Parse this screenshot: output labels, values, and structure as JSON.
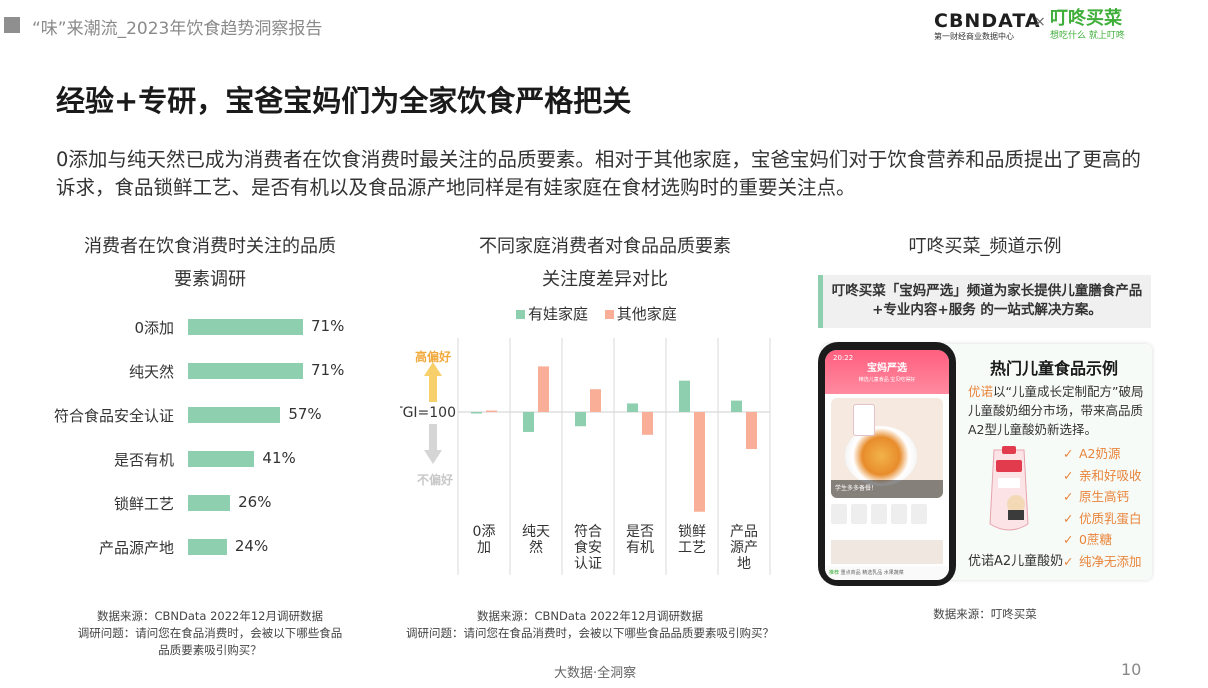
{
  "header": {
    "report_title": "“味”来潮流_2023年饮食趋势洞察报告",
    "logo_cbn_main": "CBNDATA",
    "logo_cbn_sub": "第一财经商业数据中心",
    "logo_times": "×",
    "logo_dd_main": "叮咚买菜",
    "logo_dd_sub": "想吃什么 就上叮咚"
  },
  "page_title": "经验+专研，宝爸宝妈们为全家饮食严格把关",
  "description": "0添加与纯天然已成为消费者在饮食消费时最关注的品质要素。相对于其他家庭，宝爸宝妈们对于饮食营养和品质提出了更高的诉求，食品锁鲜工艺、是否有机以及食品源产地同样是有娃家庭在食材选购时的重要关注点。",
  "colors": {
    "green": "#8ecfb0",
    "orange": "#f9ae97",
    "accent": "#e8843a"
  },
  "chart_data": [
    {
      "type": "bar",
      "orientation": "horizontal",
      "title_line1": "消费者在饮食消费时关注的品质",
      "title_line2": "要素调研",
      "categories": [
        "0添加",
        "纯天然",
        "符合食品安全认证",
        "是否有机",
        "锁鲜工艺",
        "产品源产地"
      ],
      "values": [
        71,
        71,
        57,
        41,
        26,
        24
      ],
      "value_labels": [
        "71%",
        "71%",
        "57%",
        "41%",
        "26%",
        "24%"
      ],
      "xlim": [
        0,
        100
      ],
      "color": "#8ecfb0",
      "grid": false
    },
    {
      "type": "bar",
      "title_line1": "不同家庭消费者对食品品质要素",
      "title_line2": "关注度差异对比",
      "baseline_label": "TGI=100",
      "baseline": 100,
      "top_label": "高偏好",
      "bottom_label": "不偏好",
      "categories": [
        "0添加",
        "纯天然",
        "符合食安认证",
        "是否有机",
        "锁鲜工艺",
        "产品源产地"
      ],
      "category_lines": [
        [
          "0添",
          "加"
        ],
        [
          "纯天",
          "然"
        ],
        [
          "符合",
          "食安",
          "认证"
        ],
        [
          "是否",
          "有机"
        ],
        [
          "锁鲜",
          "工艺"
        ],
        [
          "产品",
          "源产",
          "地"
        ]
      ],
      "series": [
        {
          "name": "有娃家庭",
          "color": "#8ecfb0",
          "values": [
            100,
            93,
            95,
            103,
            111,
            104
          ]
        },
        {
          "name": "其他家庭",
          "color": "#f9ae97",
          "values": [
            100.5,
            116,
            108,
            92,
            65,
            87
          ]
        }
      ],
      "ylim": [
        60,
        120
      ],
      "legend": "top"
    }
  ],
  "right_panel": {
    "title": "叮咚买菜_频道示例",
    "box_text": "叮咚买菜「宝妈严选」频道为家长提供儿童膳食产品+专业内容+服务 的一站式解决方案。",
    "promo_title": "热门儿童食品示例",
    "promo_brand": "优诺",
    "promo_desc_rest": "以“儿童成长定制配方”破局儿童酸奶细分市场，带来高品质A2型儿童酸奶新选择。",
    "product_name": "优诺A2儿童酸奶",
    "features": [
      "A2奶源",
      "亲和好吸收",
      "原生高钙",
      "优质乳蛋白",
      "0蔗糖",
      "纯净无添加"
    ],
    "check_glyph": "✓",
    "phone": {
      "status_time": "20:22",
      "channel_title": "宝妈严选",
      "sub": "精选儿童食品 宝贝吃得好",
      "hero_caption": "学生多多备餐！",
      "nav_active": "推荐",
      "nav_items": "重点商品  精选乳品  水果蔬菜"
    }
  },
  "sources": {
    "left": [
      "数据来源：CBNData 2022年12月调研数据",
      "调研问题：请问您在食品消费时，会被以下哪些食品",
      "品质要素吸引购买？"
    ],
    "middle": [
      "数据来源：CBNData 2022年12月调研数据",
      "调研问题：请问您在食品消费时，会被以下哪些食品品质要素吸引购买？"
    ],
    "right": "数据来源：叮咚买菜"
  },
  "footer": {
    "slogan": "大数据·全洞察",
    "page_number": "10"
  }
}
